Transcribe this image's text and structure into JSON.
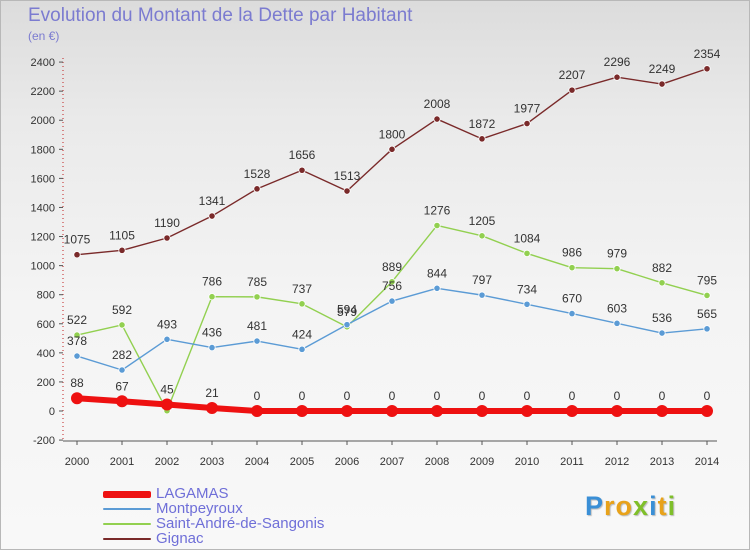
{
  "header": {
    "title": "Evolution du Montant de la Dette par Habitant",
    "subtitle": "(en €)"
  },
  "logo": {
    "letters": [
      {
        "ch": "P",
        "color": "#3a8fd6"
      },
      {
        "ch": "r",
        "color": "#e8a21a"
      },
      {
        "ch": "o",
        "color": "#e8a21a"
      },
      {
        "ch": "x",
        "color": "#7fbf2a"
      },
      {
        "ch": "i",
        "color": "#3a8fd6"
      },
      {
        "ch": "t",
        "color": "#e8a21a"
      },
      {
        "ch": "i",
        "color": "#7fbf2a"
      }
    ]
  },
  "chart_data": {
    "type": "line",
    "title": "Evolution du Montant de la Dette par Habitant",
    "subtitle": "(en €)",
    "x": [
      2000,
      2001,
      2002,
      2003,
      2004,
      2005,
      2006,
      2007,
      2008,
      2009,
      2010,
      2011,
      2012,
      2013,
      2014
    ],
    "ylim": [
      -200,
      2400
    ],
    "yticks": [
      -200,
      0,
      200,
      400,
      600,
      800,
      1000,
      1200,
      1400,
      1600,
      1800,
      2000,
      2200,
      2400
    ],
    "grid": false,
    "legend_position": "bottom-left",
    "series": [
      {
        "name": "LAGAMAS",
        "color": "#ee1111",
        "values": [
          88,
          67,
          45,
          21,
          0,
          0,
          0,
          0,
          0,
          0,
          0,
          0,
          0,
          0,
          0
        ]
      },
      {
        "name": "Montpeyroux",
        "color": "#5b9bd5",
        "values": [
          378,
          282,
          493,
          436,
          481,
          424,
          594,
          756,
          844,
          797,
          734,
          670,
          603,
          536,
          565
        ]
      },
      {
        "name": "Saint-André-de-Sangonis",
        "color": "#92d050",
        "values": [
          522,
          592,
          2,
          786,
          785,
          737,
          579,
          889,
          1276,
          1205,
          1084,
          986,
          979,
          882,
          795
        ]
      },
      {
        "name": "Gignac",
        "color": "#7a2a2a",
        "values": [
          1075,
          1105,
          1190,
          1341,
          1528,
          1656,
          1513,
          1800,
          2008,
          1872,
          1977,
          2207,
          2296,
          2249,
          2354
        ]
      }
    ]
  }
}
